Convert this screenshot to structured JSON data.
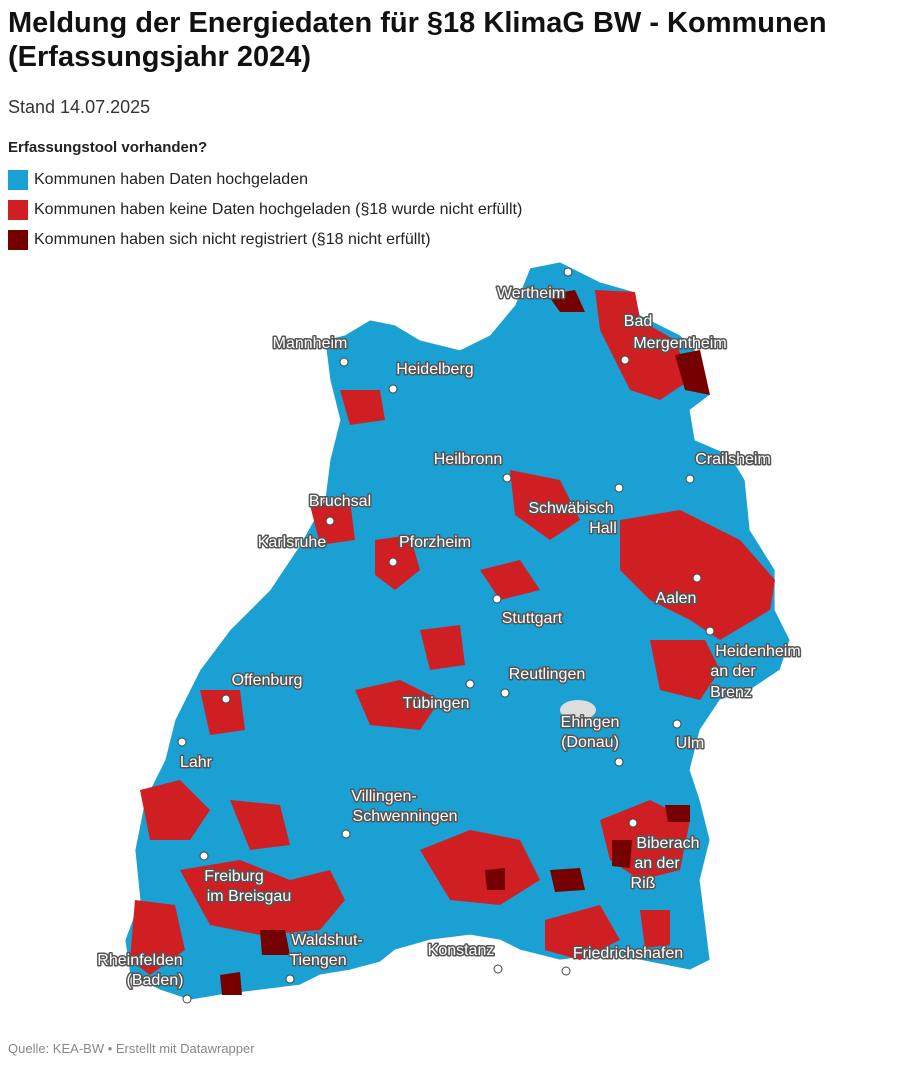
{
  "header": {
    "title": "Meldung der Energiedaten für §18 KlimaG BW - Kommunen (Erfassungsjahr 2024)",
    "subtitle": "Stand 14.07.2025"
  },
  "legend": {
    "title": "Erfassungstool vorhanden?",
    "items": [
      {
        "label": "Kommunen haben Daten hochgeladen",
        "color": "#1aa0d2"
      },
      {
        "label": "Kommunen haben keine Daten hochgeladen (§18 wurde nicht erfüllt)",
        "color": "#cf1f22"
      },
      {
        "label": "Kommunen haben sich nicht registriert (§18 nicht erfüllt)",
        "color": "#750000"
      }
    ]
  },
  "cities": [
    {
      "lines": [
        "Wertheim"
      ]
    },
    {
      "lines": [
        "Bad",
        "Mergentheim"
      ]
    },
    {
      "lines": [
        "Mannheim"
      ]
    },
    {
      "lines": [
        "Heidelberg"
      ]
    },
    {
      "lines": [
        "Heilbronn"
      ]
    },
    {
      "lines": [
        "Crailsheim"
      ]
    },
    {
      "lines": [
        "Bruchsal"
      ]
    },
    {
      "lines": [
        "Schwäbisch",
        "Hall"
      ]
    },
    {
      "lines": [
        "Karlsruhe"
      ]
    },
    {
      "lines": [
        "Pforzheim"
      ]
    },
    {
      "lines": [
        "Aalen"
      ]
    },
    {
      "lines": [
        "Stuttgart"
      ]
    },
    {
      "lines": [
        "Heidenheim",
        "an der",
        "Brenz"
      ]
    },
    {
      "lines": [
        "Offenburg"
      ]
    },
    {
      "lines": [
        "Reutlingen"
      ]
    },
    {
      "lines": [
        "Tübingen"
      ]
    },
    {
      "lines": [
        "Ehingen",
        "(Donau)"
      ]
    },
    {
      "lines": [
        "Ulm"
      ]
    },
    {
      "lines": [
        "Lahr"
      ]
    },
    {
      "lines": [
        "Villingen-",
        "Schwenningen"
      ]
    },
    {
      "lines": [
        "Biberach",
        "an der",
        "Riß"
      ]
    },
    {
      "lines": [
        "Freiburg",
        "im Breisgau"
      ]
    },
    {
      "lines": [
        "Waldshut-",
        "Tiengen"
      ]
    },
    {
      "lines": [
        "Rheinfelden",
        "(Baden)"
      ]
    },
    {
      "lines": [
        "Konstanz"
      ]
    },
    {
      "lines": [
        "Friedrichshafen"
      ]
    }
  ],
  "footer": {
    "source": "Quelle: KEA-BW • Erstellt mit Datawrapper"
  }
}
